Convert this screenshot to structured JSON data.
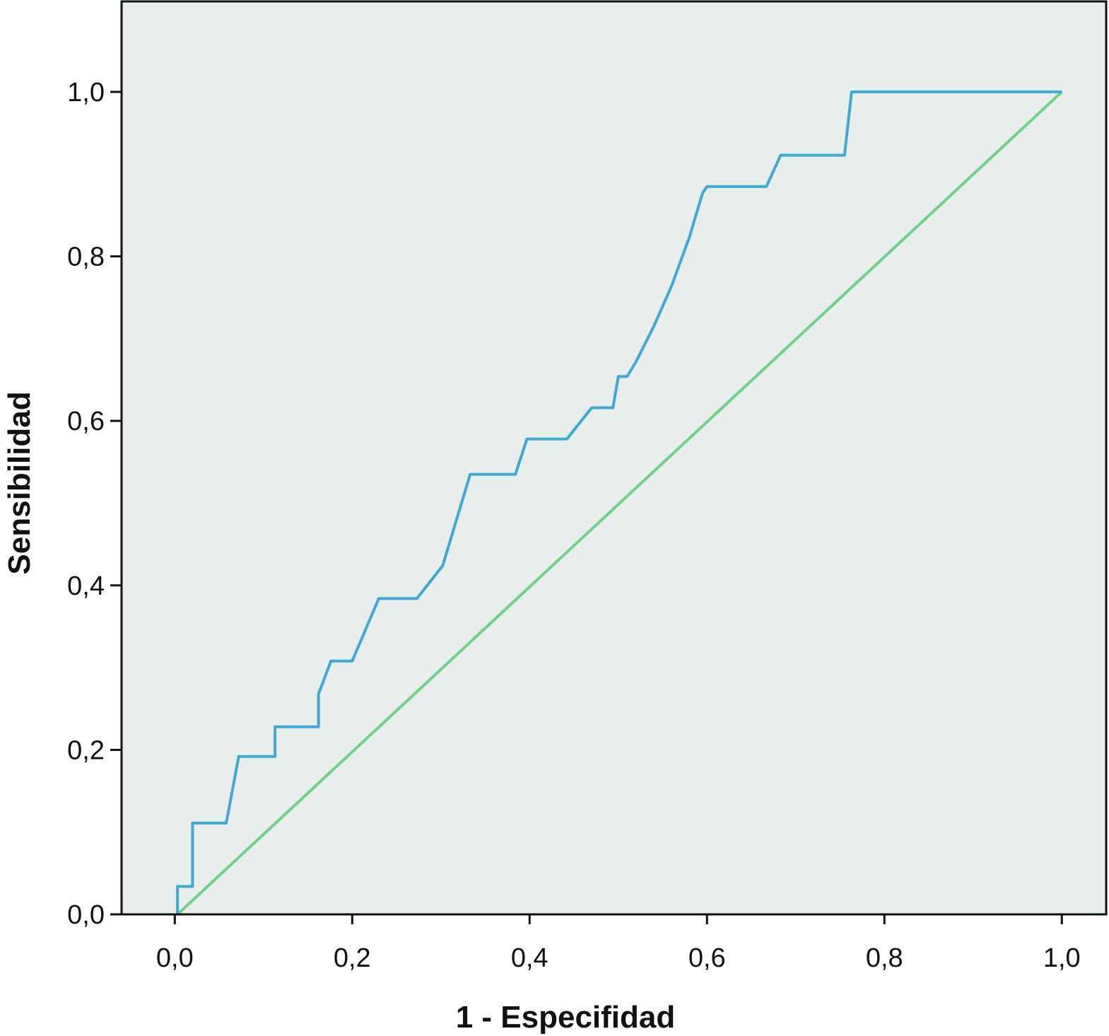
{
  "chart_data": {
    "type": "line",
    "title": "",
    "xlabel": "1 - Especifidad",
    "ylabel": "Sensibilidad",
    "xlim": [
      -0.06,
      1.05
    ],
    "ylim": [
      0.0,
      1.11
    ],
    "x_ticks": [
      0.0,
      0.2,
      0.4,
      0.6,
      0.8,
      1.0
    ],
    "x_tick_labels": [
      "0,0",
      "0,2",
      "0,4",
      "0,6",
      "0,8",
      "1,0"
    ],
    "y_ticks": [
      0.0,
      0.2,
      0.4,
      0.6,
      0.8,
      1.0
    ],
    "y_tick_labels": [
      "0,0",
      "0,2",
      "0,4",
      "0,6",
      "0,8",
      "1,0"
    ],
    "grid": false,
    "background": "#e8eeeb",
    "series": [
      {
        "color": "#3fa9d6",
        "x": [
          0.003,
          0.003,
          0.02,
          0.02,
          0.058,
          0.072,
          0.113,
          0.113,
          0.162,
          0.162,
          0.176,
          0.2,
          0.23,
          0.273,
          0.302,
          0.333,
          0.384,
          0.397,
          0.442,
          0.47,
          0.494,
          0.5,
          0.51,
          0.52,
          0.54,
          0.56,
          0.58,
          0.595,
          0.6,
          0.667,
          0.683,
          0.755,
          0.763,
          1.0
        ],
        "y": [
          0.0,
          0.034,
          0.034,
          0.111,
          0.111,
          0.192,
          0.192,
          0.228,
          0.228,
          0.268,
          0.308,
          0.308,
          0.384,
          0.384,
          0.424,
          0.535,
          0.535,
          0.578,
          0.578,
          0.616,
          0.616,
          0.654,
          0.654,
          0.672,
          0.715,
          0.764,
          0.823,
          0.877,
          0.885,
          0.885,
          0.923,
          0.923,
          1.0,
          1.0
        ]
      },
      {
        "color": "#6fd28b",
        "x": [
          0.003,
          1.0
        ],
        "y": [
          0.0,
          1.0
        ]
      }
    ]
  }
}
